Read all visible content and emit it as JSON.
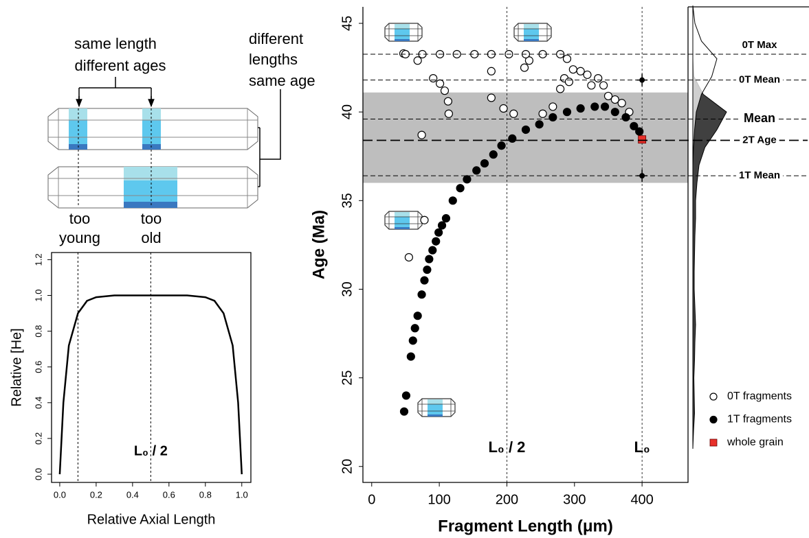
{
  "diagram": {
    "texts": [
      "same length",
      "different ages",
      "different",
      "lengths",
      "same age",
      "too",
      "young",
      "too",
      "old"
    ]
  },
  "chart_data": [
    {
      "type": "line",
      "xlabel": "Relative Axial Length",
      "ylabel": "Relative [He]",
      "color": "#000000",
      "x": [
        0,
        0.01,
        0.02,
        0.05,
        0.1,
        0.15,
        0.2,
        0.3,
        0.5,
        0.7,
        0.8,
        0.85,
        0.9,
        0.95,
        0.98,
        0.99,
        1
      ],
      "values": [
        0,
        0.2,
        0.4,
        0.72,
        0.9,
        0.97,
        0.99,
        1.0,
        1.0,
        1.0,
        0.99,
        0.97,
        0.9,
        0.72,
        0.4,
        0.2,
        0
      ],
      "xlim": [
        -0.045,
        1.05
      ],
      "ylim": [
        -0.046,
        1.24
      ],
      "xticks": [
        {
          "value": 0,
          "label": "0.0"
        },
        0.2,
        0.4,
        0.6,
        0.8,
        {
          "value": 1,
          "label": "1.0"
        }
      ],
      "yticks": [
        {
          "value": 0,
          "label": "0.0"
        },
        0.2,
        0.4,
        0.6,
        0.8,
        {
          "value": 1,
          "label": "1.0"
        },
        1.2
      ],
      "vlines": [
        {
          "value": 0.1
        },
        {
          "value": 0.5,
          "label": "L₀ / 2"
        }
      ]
    },
    {
      "type": "scatter",
      "xlabel": "Fragment Length (μm)",
      "ylabel": "Age (Ma)",
      "xlim": [
        -13,
        468
      ],
      "ylim": [
        19.1,
        45.93
      ],
      "xticks": [
        0,
        100,
        200,
        300,
        400
      ],
      "yticks": [
        20,
        25,
        30,
        35,
        40,
        45
      ],
      "band": [
        36.0,
        41.1
      ],
      "band_color": "#bebebe",
      "vlines": [
        {
          "value": 200,
          "label": "L₀ / 2"
        },
        {
          "value": 400,
          "label": "L₀"
        }
      ],
      "hlines": [
        {
          "label": "0T Max",
          "value": 43.26
        },
        {
          "label": "0T Mean",
          "value": 41.8,
          "point_x": 400
        },
        {
          "label": "Mean",
          "value": 39.6
        },
        {
          "label": "2T Age",
          "value": 38.4
        },
        {
          "label": "1T Mean",
          "value": 36.4,
          "point_x": 400
        }
      ],
      "legend": "bottom right",
      "series": [
        {
          "name": "0T fragments",
          "marker": "open",
          "color": "#ffffff",
          "x": [
            47,
            68,
            91,
            101,
            108,
            113,
            114,
            74,
            55,
            78,
            177,
            177,
            195,
            210,
            226,
            233,
            253,
            268,
            279,
            285,
            292,
            298,
            309,
            319,
            325,
            335,
            343,
            350,
            360,
            370,
            381,
            50,
            75,
            101,
            126,
            152,
            177,
            203,
            228,
            253,
            279,
            289
          ],
          "values": [
            43.3,
            42.9,
            41.9,
            41.6,
            41.2,
            40.6,
            39.9,
            38.7,
            31.8,
            33.9,
            42.3,
            40.8,
            40.2,
            39.9,
            42.5,
            42.9,
            39.9,
            40.3,
            41.3,
            41.9,
            41.7,
            42.4,
            42.3,
            42.1,
            41.5,
            41.9,
            41.5,
            40.9,
            40.7,
            40.5,
            40.0,
            43.26,
            43.26,
            43.26,
            43.26,
            43.26,
            43.26,
            43.26,
            43.26,
            43.26,
            43.26,
            43.0
          ]
        },
        {
          "name": "1T fragments",
          "marker": "filled",
          "color": "#000000",
          "x": [
            48,
            51,
            58,
            61,
            64,
            68,
            74,
            78,
            82,
            85,
            90,
            95,
            99,
            104,
            110,
            120,
            131,
            141,
            155,
            167,
            180,
            192,
            208,
            228,
            248,
            268,
            289,
            309,
            330,
            345,
            360,
            376,
            388,
            396
          ],
          "values": [
            23.1,
            24.0,
            26.2,
            27.1,
            27.8,
            28.5,
            29.7,
            30.5,
            31.1,
            31.7,
            32.2,
            32.7,
            33.2,
            33.6,
            34.0,
            35.0,
            35.7,
            36.2,
            36.7,
            37.1,
            37.6,
            38.1,
            38.5,
            39.0,
            39.3,
            39.7,
            40.0,
            40.2,
            40.3,
            40.3,
            40.0,
            39.7,
            39.2,
            38.9
          ]
        },
        {
          "name": "whole grain",
          "marker": "square",
          "color": "#e8302a",
          "x": [
            400
          ],
          "values": [
            38.45
          ]
        }
      ]
    },
    {
      "type": "density",
      "y": [
        21,
        22,
        23,
        24,
        25,
        26,
        27,
        28,
        29,
        30,
        31,
        32,
        33,
        34,
        35,
        36,
        37,
        38,
        39,
        40,
        41,
        42,
        43,
        44,
        45,
        46
      ],
      "series": [
        {
          "color": "#404040",
          "values": [
            0,
            0.02,
            0.05,
            0.04,
            0.03,
            0.05,
            0.06,
            0.08,
            0.06,
            0.04,
            0.04,
            0.05,
            0.06,
            0.08,
            0.08,
            0.12,
            0.18,
            0.35,
            0.7,
            0.98,
            0.3,
            0.03,
            0,
            0,
            0,
            0
          ]
        },
        {
          "color": "#ffffff",
          "values": [
            0,
            0,
            0,
            0,
            0,
            0,
            0,
            0,
            0,
            0,
            0,
            0,
            0,
            0,
            0,
            0,
            0,
            0.02,
            0.05,
            0.1,
            0.25,
            0.55,
            0.7,
            0.25,
            0.06,
            0
          ]
        }
      ]
    }
  ]
}
